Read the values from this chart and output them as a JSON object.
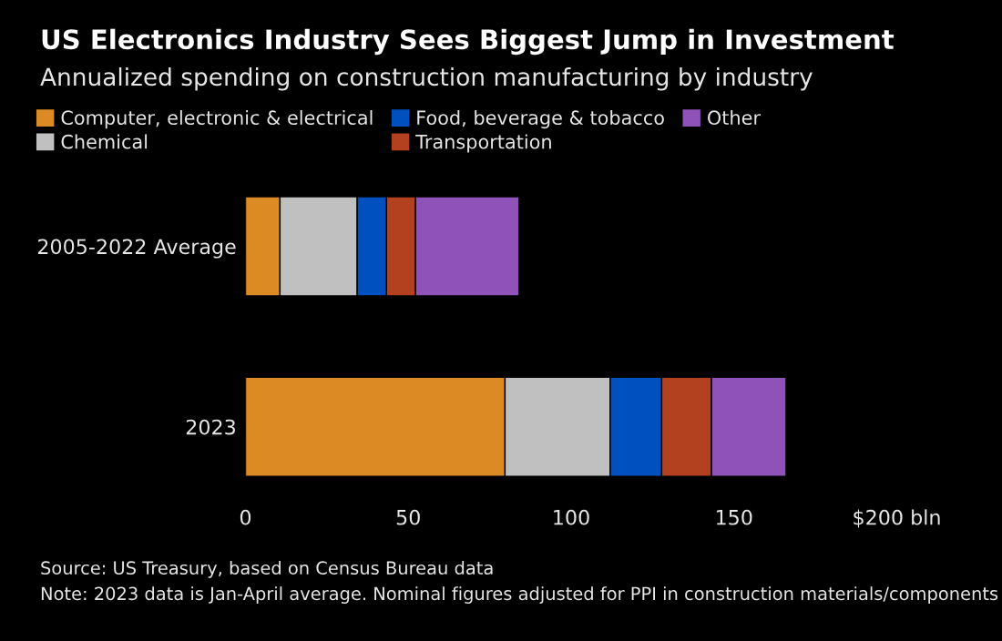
{
  "chart_data": {
    "type": "bar",
    "orientation": "horizontal",
    "stacked": true,
    "title": "US Electronics Industry Sees Biggest Jump in Investment",
    "subtitle": "Annualized spending on construction manufacturing by industry",
    "categories": [
      "2005-2022 Average",
      "2023"
    ],
    "series": [
      {
        "name": "Computer, electronic & electrical",
        "color": "#dc8a24",
        "values": [
          10.6,
          79.7
        ]
      },
      {
        "name": "Chemical",
        "color": "#c0c0c0",
        "values": [
          23.7,
          32.3
        ]
      },
      {
        "name": "Food, beverage & tobacco",
        "color": "#0050bf",
        "values": [
          9.0,
          15.8
        ]
      },
      {
        "name": "Transportation",
        "color": "#b3401f",
        "values": [
          8.9,
          15.3
        ]
      },
      {
        "name": "Other",
        "color": "#8f52b8",
        "values": [
          31.8,
          22.9
        ]
      }
    ],
    "xlim": [
      0,
      200
    ],
    "xticks": [
      0,
      50,
      100,
      150,
      {
        "value": 200,
        "label": "$200 bln"
      }
    ],
    "grid": false,
    "legend": "top left",
    "annotations": [
      "Source: US Treasury, based on Census Bureau data",
      "Note: 2023 data is Jan-April average. Nominal figures adjusted for PPI in construction materials/components"
    ]
  }
}
